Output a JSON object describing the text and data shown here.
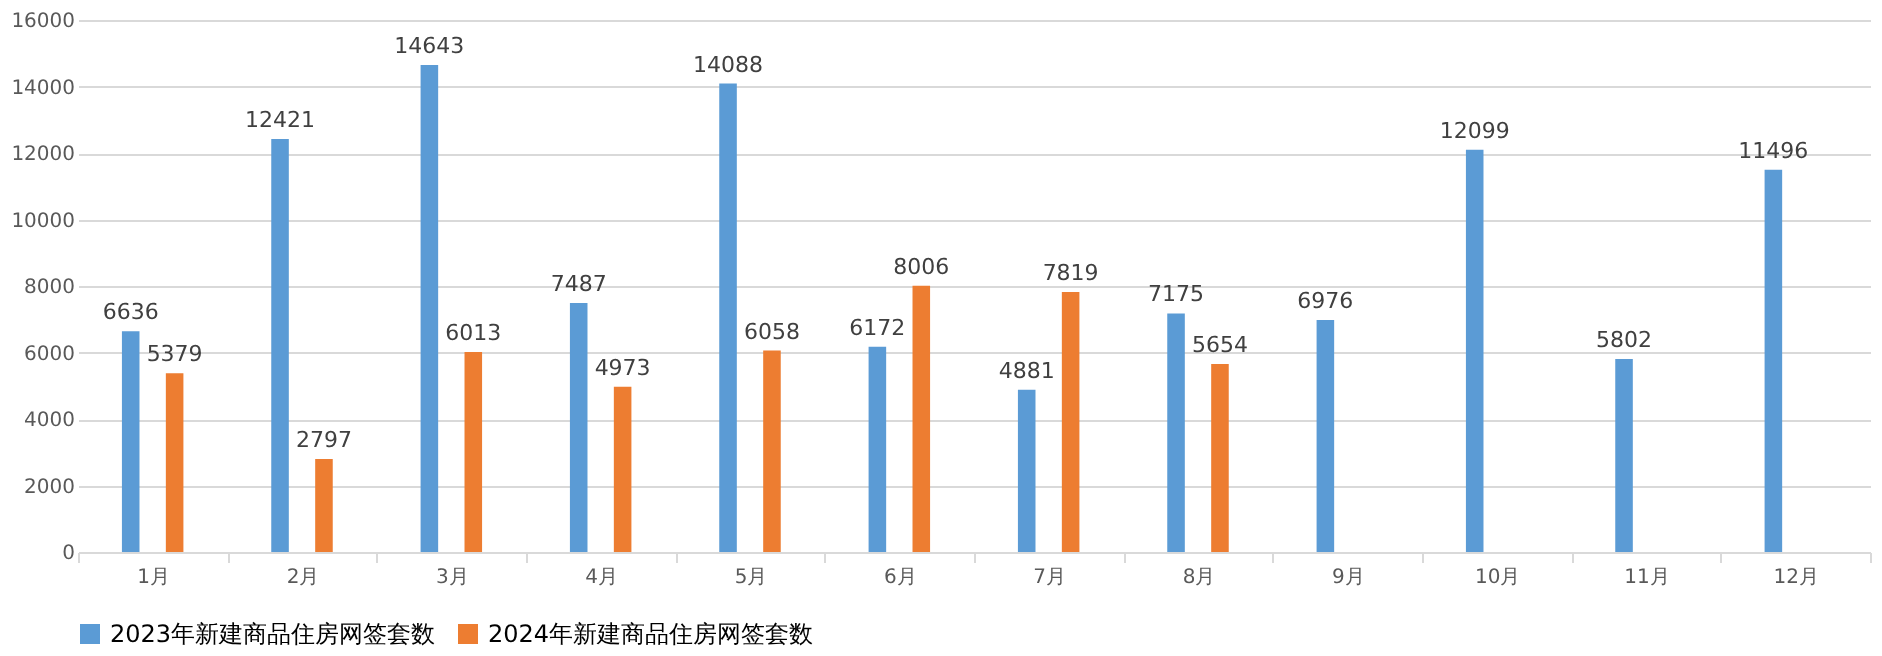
{
  "chart_data": {
    "type": "bar",
    "categories": [
      "1月",
      "2月",
      "3月",
      "4月",
      "5月",
      "6月",
      "7月",
      "8月",
      "9月",
      "10月",
      "11月",
      "12月"
    ],
    "series": [
      {
        "name": "2023年新建商品住房网签套数",
        "color": "#5b9bd5",
        "values": [
          6636,
          12421,
          14643,
          7487,
          14088,
          6172,
          4881,
          7175,
          6976,
          12099,
          5802,
          11496
        ]
      },
      {
        "name": "2024年新建商品住房网签套数",
        "color": "#ed7d31",
        "values": [
          5379,
          2797,
          6013,
          4973,
          6058,
          8006,
          7819,
          5654,
          null,
          null,
          null,
          null
        ]
      }
    ],
    "ylim": [
      0,
      16000
    ],
    "yticks": [
      0,
      2000,
      4000,
      6000,
      8000,
      10000,
      12000,
      14000,
      16000
    ],
    "grid": "y",
    "legend": "bottom",
    "data_labels": true
  }
}
